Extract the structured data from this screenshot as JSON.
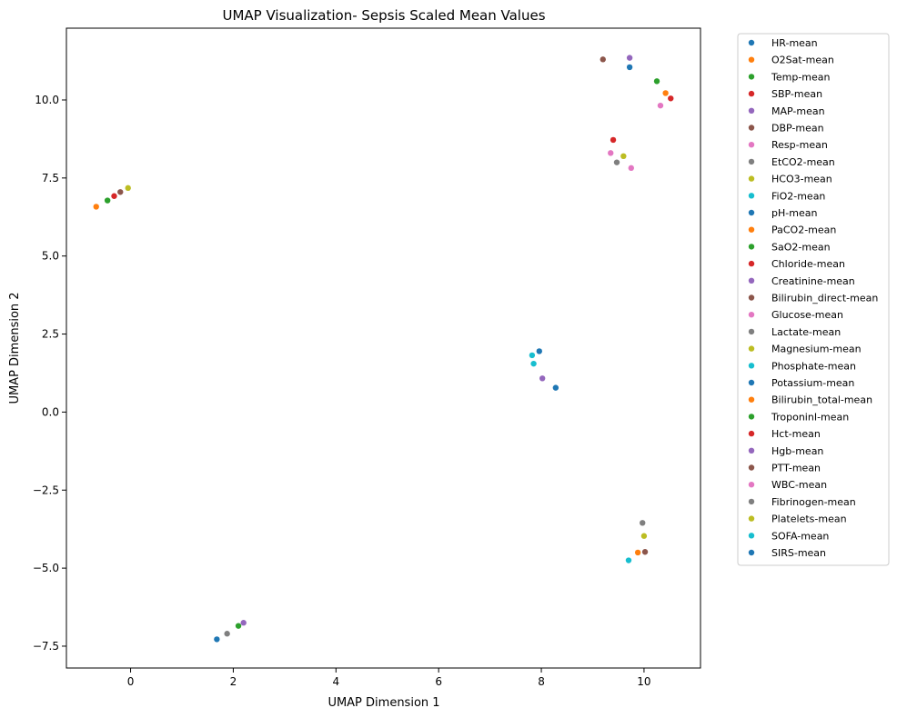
{
  "chart_data": {
    "type": "scatter",
    "title": "UMAP Visualization- Sepsis Scaled Mean Values",
    "xlabel": "UMAP Dimension 1",
    "ylabel": "UMAP Dimension 2",
    "xlim": [
      -1.25,
      11.1
    ],
    "ylim": [
      -8.2,
      12.3
    ],
    "xticks": [
      0,
      2,
      4,
      6,
      8,
      10
    ],
    "xtick_labels": [
      "0",
      "2",
      "4",
      "6",
      "8",
      "10"
    ],
    "yticks": [
      -7.5,
      -5.0,
      -2.5,
      0.0,
      2.5,
      5.0,
      7.5,
      10.0
    ],
    "ytick_labels": [
      "−7.5",
      "−5.0",
      "−2.5",
      "0.0",
      "2.5",
      "5.0",
      "7.5",
      "10.0"
    ],
    "grid": false,
    "legend_position": "outside-right",
    "series": [
      {
        "name": "HR-mean",
        "color": "#1f77b4",
        "x": 9.72,
        "y": 11.05
      },
      {
        "name": "O2Sat-mean",
        "color": "#ff7f0e",
        "x": 10.42,
        "y": 10.22
      },
      {
        "name": "Temp-mean",
        "color": "#2ca02c",
        "x": 10.25,
        "y": 10.6
      },
      {
        "name": "SBP-mean",
        "color": "#d62728",
        "x": 10.52,
        "y": 10.05
      },
      {
        "name": "MAP-mean",
        "color": "#9467bd",
        "x": 9.72,
        "y": 11.35
      },
      {
        "name": "DBP-mean",
        "color": "#8c564b",
        "x": 9.2,
        "y": 11.3
      },
      {
        "name": "Resp-mean",
        "color": "#e377c2",
        "x": 10.32,
        "y": 9.82
      },
      {
        "name": "EtCO2-mean",
        "color": "#7f7f7f",
        "x": 9.47,
        "y": 8.0
      },
      {
        "name": "HCO3-mean",
        "color": "#bcbd22",
        "x": 9.6,
        "y": 8.2
      },
      {
        "name": "FiO2-mean",
        "color": "#17becf",
        "x": 7.82,
        "y": 1.82
      },
      {
        "name": "pH-mean",
        "color": "#1f77b4",
        "x": 7.96,
        "y": 1.95
      },
      {
        "name": "PaCO2-mean",
        "color": "#ff7f0e",
        "x": -0.67,
        "y": 6.58
      },
      {
        "name": "SaO2-mean",
        "color": "#2ca02c",
        "x": -0.45,
        "y": 6.78
      },
      {
        "name": "Chloride-mean",
        "color": "#d62728",
        "x": 9.4,
        "y": 8.72
      },
      {
        "name": "Creatinine-mean",
        "color": "#9467bd",
        "x": 8.02,
        "y": 1.08
      },
      {
        "name": "Bilirubin_direct-mean",
        "color": "#8c564b",
        "x": -0.2,
        "y": 7.05
      },
      {
        "name": "Glucose-mean",
        "color": "#e377c2",
        "x": 9.35,
        "y": 8.3
      },
      {
        "name": "Lactate-mean",
        "color": "#7f7f7f",
        "x": 1.88,
        "y": -7.1
      },
      {
        "name": "Magnesium-mean",
        "color": "#bcbd22",
        "x": -0.05,
        "y": 7.18
      },
      {
        "name": "Phosphate-mean",
        "color": "#17becf",
        "x": 7.85,
        "y": 1.55
      },
      {
        "name": "Potassium-mean",
        "color": "#1f77b4",
        "x": 8.28,
        "y": 0.78
      },
      {
        "name": "Bilirubin_total-mean",
        "color": "#ff7f0e",
        "x": 9.88,
        "y": -4.5
      },
      {
        "name": "TroponinI-mean",
        "color": "#2ca02c",
        "x": 2.1,
        "y": -6.85
      },
      {
        "name": "Hct-mean",
        "color": "#d62728",
        "x": -0.32,
        "y": 6.92
      },
      {
        "name": "Hgb-mean",
        "color": "#9467bd",
        "x": 2.2,
        "y": -6.75
      },
      {
        "name": "PTT-mean",
        "color": "#8c564b",
        "x": 10.02,
        "y": -4.48
      },
      {
        "name": "WBC-mean",
        "color": "#e377c2",
        "x": 9.75,
        "y": 7.82
      },
      {
        "name": "Fibrinogen-mean",
        "color": "#7f7f7f",
        "x": 9.97,
        "y": -3.55
      },
      {
        "name": "Platelets-mean",
        "color": "#bcbd22",
        "x": 10.0,
        "y": -3.97
      },
      {
        "name": "SOFA-mean",
        "color": "#17becf",
        "x": 9.7,
        "y": -4.75
      },
      {
        "name": "SIRS-mean",
        "color": "#1f77b4",
        "x": 1.68,
        "y": -7.28
      }
    ]
  }
}
